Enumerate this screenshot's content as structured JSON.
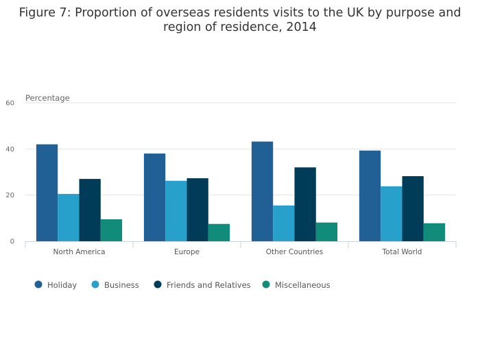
{
  "chart_data": {
    "type": "bar",
    "title_lines": [
      "Figure 7: Proportion of overseas residents visits to the UK by purpose and",
      "region of residence, 2014"
    ],
    "ylabel": "Percentage",
    "xlabel": "",
    "ylim": [
      0,
      60
    ],
    "yticks": [
      0,
      20,
      40,
      60
    ],
    "grid": true,
    "legend_position": "bottom-left",
    "categories": [
      "North America",
      "Europe",
      "Other Countries",
      "Total World"
    ],
    "series": [
      {
        "name": "Holiday",
        "color": "#206095",
        "values": [
          42,
          38,
          43.2,
          39.3
        ]
      },
      {
        "name": "Business",
        "color": "#27a0cc",
        "values": [
          20.5,
          26.2,
          15.5,
          23.8
        ]
      },
      {
        "name": "Friends and Relatives",
        "color": "#003c57",
        "values": [
          27,
          27.3,
          32,
          28.2
        ]
      },
      {
        "name": "Miscellaneous",
        "color": "#118c7b",
        "values": [
          9.5,
          7.5,
          8.1,
          7.8
        ]
      }
    ]
  }
}
